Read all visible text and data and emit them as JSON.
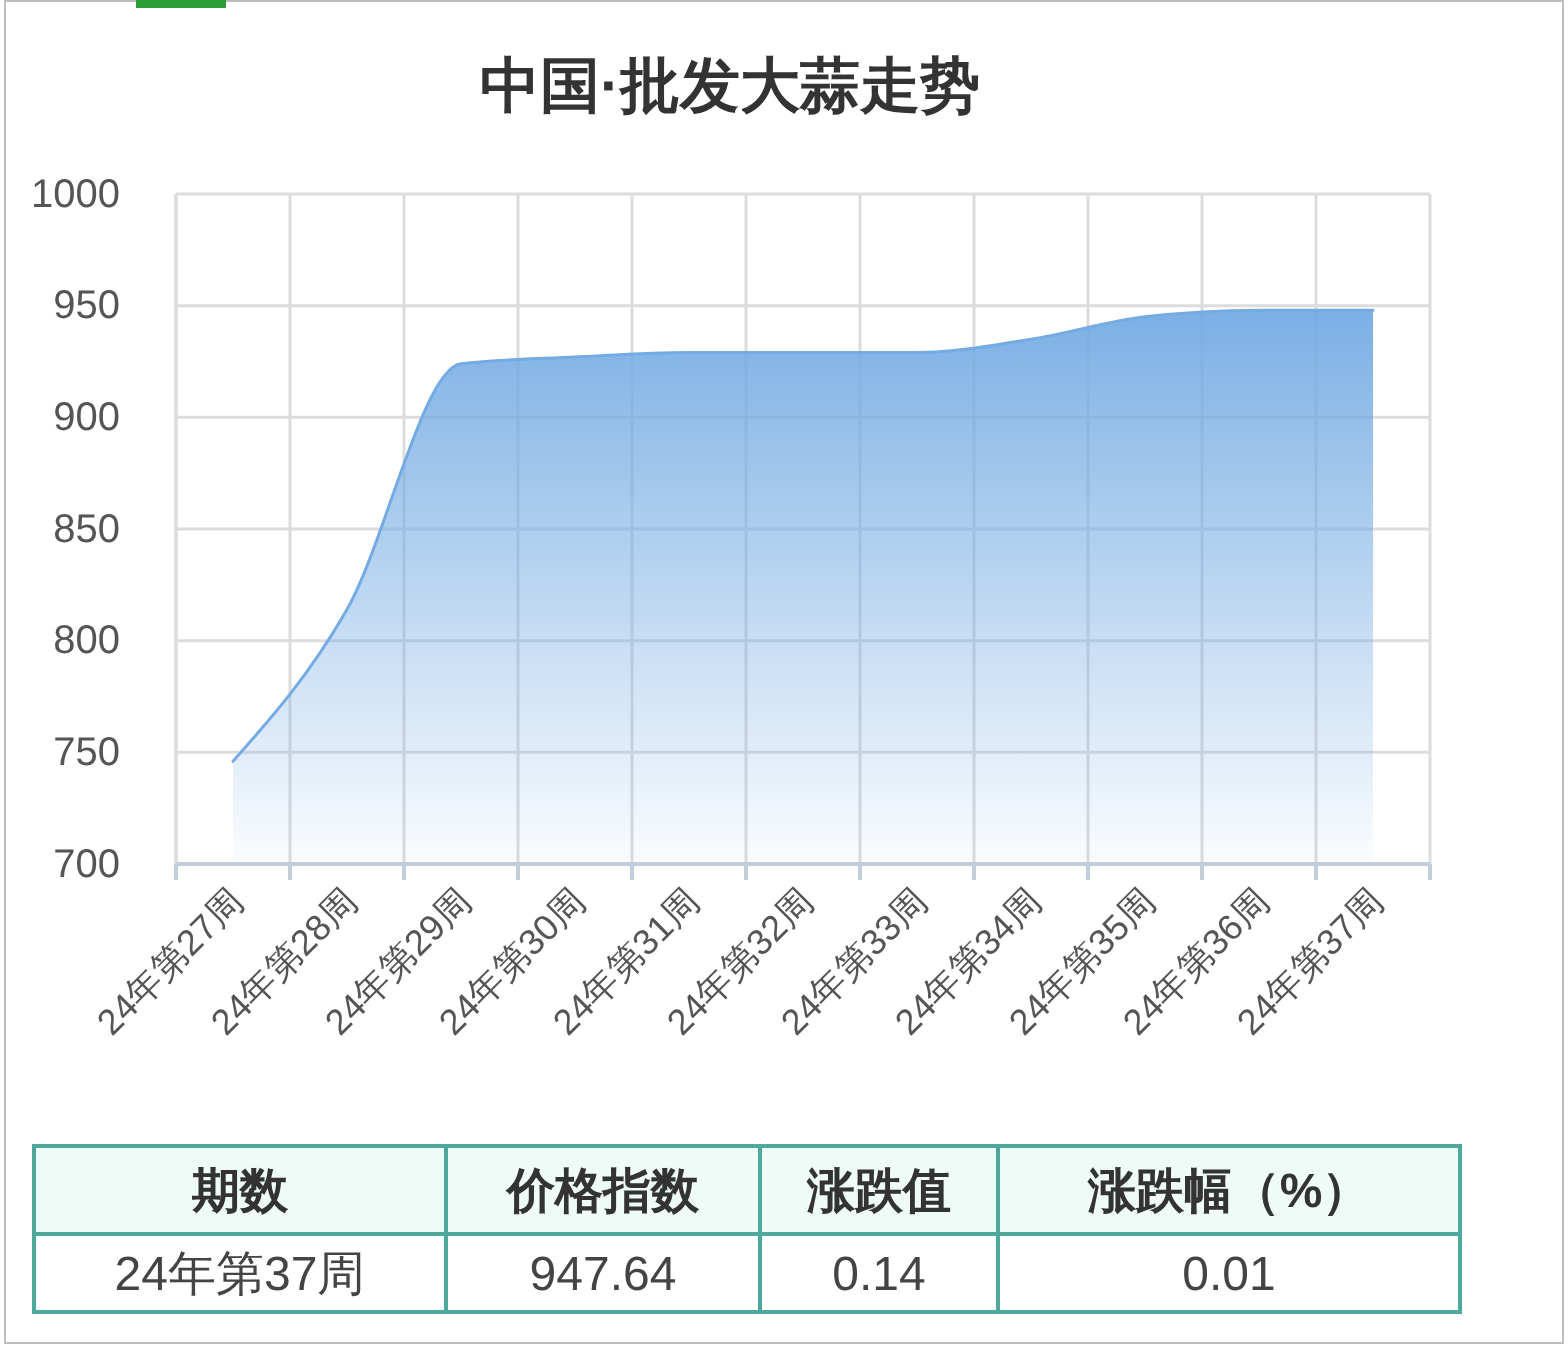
{
  "chart_data": {
    "type": "area",
    "title": "中国·批发大蒜走势",
    "categories": [
      "24年第27周",
      "24年第28周",
      "24年第29周",
      "24年第30周",
      "24年第31周",
      "24年第32周",
      "24年第33周",
      "24年第34周",
      "24年第35周",
      "24年第36周",
      "24年第37周"
    ],
    "values": [
      746,
      814,
      924,
      927,
      929,
      929,
      929,
      935,
      945,
      948,
      948
    ],
    "color": "#74abe3",
    "ylim": [
      700,
      1000
    ],
    "yticks": [
      700,
      750,
      800,
      850,
      900,
      950,
      1000
    ],
    "grid": true,
    "annotations": [
      "期数",
      "价格指数",
      "涨跌值",
      "涨跌幅（%）",
      "24年第37周",
      "947.64",
      "0.14",
      "0.01"
    ]
  }
}
